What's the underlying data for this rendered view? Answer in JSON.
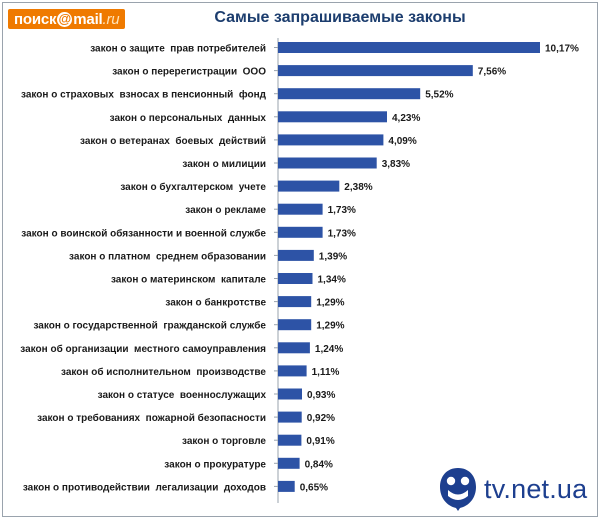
{
  "logo": {
    "part1": "поиск",
    "at": "@",
    "part2": "mail",
    "part3": ".ru"
  },
  "watermark": {
    "text": "tv.net.ua",
    "icon": "tv-net-logo-icon"
  },
  "colors": {
    "bar": "#2d53a6",
    "title": "#1c3d6e",
    "logo": "#ef7a00",
    "watermark": "#1d3f8f"
  },
  "chart_data": {
    "type": "bar",
    "orientation": "horizontal",
    "title": "Самые запрашиваемые законы",
    "categories": [
      "закон о защите  прав потребителей",
      "закон о перерегистрации  ООО",
      "закон о страховых  взносах в пенсионный  фонд",
      "закон о персональных  данных",
      "закон о ветеранах  боевых  действий",
      "закон о милиции",
      "закон о бухгалтерском  учете",
      "закон о рекламе",
      "закон о воинской обязанности и военной службе",
      "закон о платном  среднем образовании",
      "закон о материнском  капитале",
      "закон о банкротстве",
      "закон о государственной  гражданской службе",
      "закон об организации  местного самоуправления",
      "закон об исполнительном  производстве",
      "закон о статусе  военнослужащих",
      "закон о требованиях  пожарной безопасности",
      "закон о торговле",
      "закон о прокуратуре",
      "закон о противодействии  легализации  доходов"
    ],
    "values": [
      10.17,
      7.56,
      5.52,
      4.23,
      4.09,
      3.83,
      2.38,
      1.73,
      1.73,
      1.39,
      1.34,
      1.29,
      1.29,
      1.24,
      1.11,
      0.93,
      0.92,
      0.91,
      0.84,
      0.65
    ],
    "value_labels": [
      "10,17%",
      "7,56%",
      "5,52%",
      "4,23%",
      "4,09%",
      "3,83%",
      "2,38%",
      "1,73%",
      "1,73%",
      "1,39%",
      "1,34%",
      "1,29%",
      "1,29%",
      "1,24%",
      "1,11%",
      "0,93%",
      "0,92%",
      "0,91%",
      "0,84%",
      "0,65%"
    ],
    "xlim": [
      0,
      10.17
    ],
    "grid": false,
    "legend": "none"
  }
}
